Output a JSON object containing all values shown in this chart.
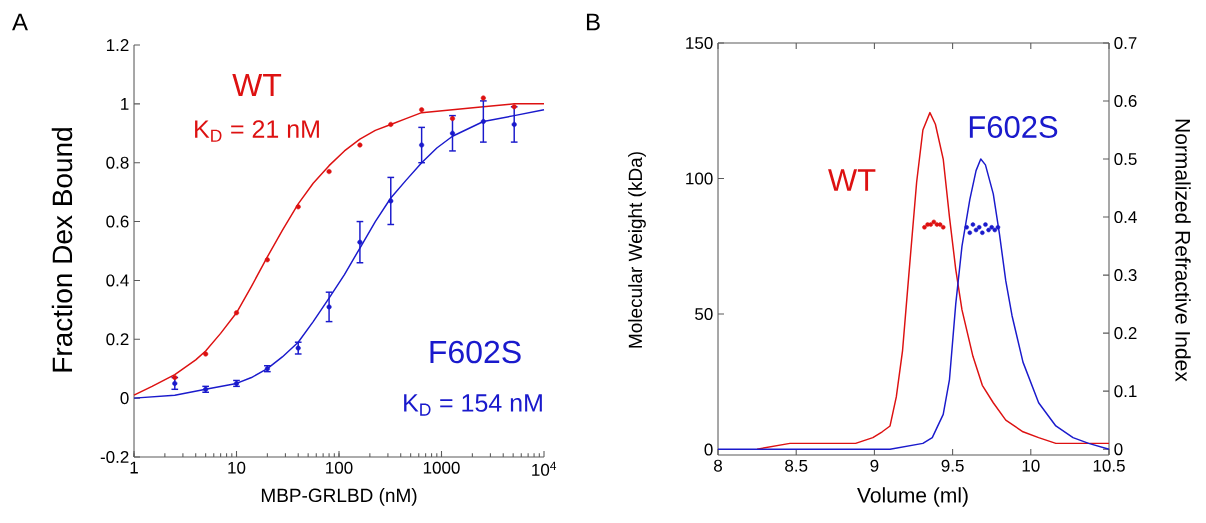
{
  "chart_data": [
    {
      "type": "scatter",
      "title": "A",
      "xlabel": "MBP-GRLBD (nM)",
      "ylabel": "Fraction Dex Bound",
      "log": "x",
      "xlim": [
        1,
        10000
      ],
      "xticks": [
        1,
        10,
        100,
        1000,
        {
          "value": 10000,
          "label": "10$^{4}$"
        }
      ],
      "ylim": [
        -0.2,
        1.2
      ],
      "yticks": [
        -0.2,
        0,
        0.2,
        0.4,
        0.6,
        0.8,
        1,
        1.2
      ],
      "grid": false,
      "series": [
        {
          "type": "line",
          "marker": "none",
          "color": "#dd1111",
          "x": [
            1,
            1.5,
            2.5,
            4,
            5,
            7,
            10,
            14,
            20,
            28,
            40,
            56,
            80,
            113,
            160,
            226,
            320,
            450,
            640,
            1280,
            2560,
            5120,
            10000
          ],
          "values": [
            0.01,
            0.04,
            0.08,
            0.13,
            0.16,
            0.22,
            0.29,
            0.38,
            0.48,
            0.57,
            0.66,
            0.73,
            0.79,
            0.84,
            0.88,
            0.91,
            0.93,
            0.95,
            0.97,
            0.98,
            0.99,
            1.0,
            1.0
          ]
        },
        {
          "type": "line",
          "marker": "none",
          "color": "#1a1acc",
          "x": [
            1,
            2.5,
            5,
            10,
            14,
            20,
            28,
            40,
            56,
            80,
            113,
            160,
            226,
            320,
            450,
            640,
            900,
            1280,
            2560,
            5120,
            10000
          ],
          "values": [
            0.0,
            0.01,
            0.03,
            0.05,
            0.07,
            0.1,
            0.14,
            0.19,
            0.26,
            0.34,
            0.42,
            0.51,
            0.6,
            0.68,
            0.74,
            0.8,
            0.85,
            0.89,
            0.94,
            0.96,
            0.98
          ]
        },
        {
          "marker": "circle",
          "name": "WT",
          "color": "#dd1111",
          "x": [
            2.5,
            5,
            10,
            20,
            40,
            80,
            160,
            320,
            640,
            1280,
            2560,
            5120
          ],
          "values": [
            0.07,
            0.15,
            0.29,
            0.47,
            0.65,
            0.77,
            0.86,
            0.93,
            0.98,
            0.95,
            1.02,
            0.99
          ]
        },
        {
          "marker": "circle",
          "name": "F602S",
          "color": "#1a1acc",
          "x": [
            2.5,
            5,
            10,
            20,
            40,
            80,
            160,
            320,
            640,
            1280,
            2560,
            5120
          ],
          "values": [
            0.05,
            0.03,
            0.05,
            0.1,
            0.17,
            0.31,
            0.53,
            0.67,
            0.86,
            0.9,
            0.94,
            0.93
          ],
          "errors": [
            0.02,
            0.01,
            0.01,
            0.01,
            0.02,
            0.05,
            0.07,
            0.08,
            0.06,
            0.06,
            0.07,
            0.06
          ]
        }
      ],
      "annotations": [
        "K$_{D}$ = 21 nM",
        "K$_{D}$ = 154 nM"
      ]
    },
    {
      "type": "line",
      "title": "B",
      "xlabel": "Volume (ml)",
      "ylabel": "Molecular Weight (kDa)",
      "y2label": "Normalized Refractive Index",
      "xlim": [
        8,
        10.5
      ],
      "xticks": [
        8,
        8.5,
        9,
        9.5,
        10,
        10.5
      ],
      "ylim": [
        -2,
        150
      ],
      "yticks": [
        0,
        50,
        100,
        150
      ],
      "y2lim": [
        -0.01,
        0.7
      ],
      "y2ticks": [
        0,
        0.1,
        0.2,
        0.3,
        0.4,
        0.5,
        0.6,
        0.7
      ],
      "grid": false,
      "series": [
        {
          "axis": "y2",
          "marker": "none",
          "name": "WT",
          "color": "#dd1111",
          "x": [
            8.25,
            8.46,
            8.54,
            8.88,
            8.99,
            9.05,
            9.1,
            9.14,
            9.18,
            9.22,
            9.27,
            9.31,
            9.355,
            9.39,
            9.44,
            9.48,
            9.52,
            9.56,
            9.63,
            9.69,
            9.76,
            9.84,
            9.95,
            10.05,
            10.16,
            10.5
          ],
          "values": [
            0.0,
            0.01,
            0.01,
            0.01,
            0.02,
            0.03,
            0.04,
            0.09,
            0.17,
            0.3,
            0.46,
            0.55,
            0.58,
            0.56,
            0.5,
            0.4,
            0.31,
            0.24,
            0.16,
            0.11,
            0.08,
            0.05,
            0.03,
            0.02,
            0.01,
            0.01
          ]
        },
        {
          "axis": "y2",
          "marker": "none",
          "name": "F602S",
          "color": "#1a1acc",
          "x": [
            8,
            8.67,
            9.1,
            9.31,
            9.37,
            9.44,
            9.48,
            9.52,
            9.56,
            9.61,
            9.65,
            9.68,
            9.71,
            9.76,
            9.8,
            9.84,
            9.88,
            9.95,
            10.05,
            10.16,
            10.27,
            10.37,
            10.5
          ],
          "values": [
            0.0,
            0.0,
            0.0,
            0.01,
            0.02,
            0.06,
            0.12,
            0.25,
            0.35,
            0.43,
            0.48,
            0.5,
            0.49,
            0.44,
            0.37,
            0.29,
            0.23,
            0.15,
            0.08,
            0.04,
            0.02,
            0.01,
            0.0
          ]
        },
        {
          "type": "scatter",
          "marker": "circle",
          "color": "#dd1111",
          "x": [
            9.32,
            9.34,
            9.36,
            9.38,
            9.4,
            9.42,
            9.44
          ],
          "values": [
            82,
            83,
            83,
            84,
            83,
            83,
            82
          ]
        },
        {
          "type": "scatter",
          "marker": "circle",
          "color": "#1a1acc",
          "x": [
            9.59,
            9.61,
            9.63,
            9.65,
            9.67,
            9.69,
            9.71,
            9.73,
            9.75,
            9.77,
            9.79
          ],
          "values": [
            82,
            80,
            83,
            81,
            82,
            80,
            83,
            81,
            82,
            81,
            82
          ]
        }
      ]
    }
  ]
}
